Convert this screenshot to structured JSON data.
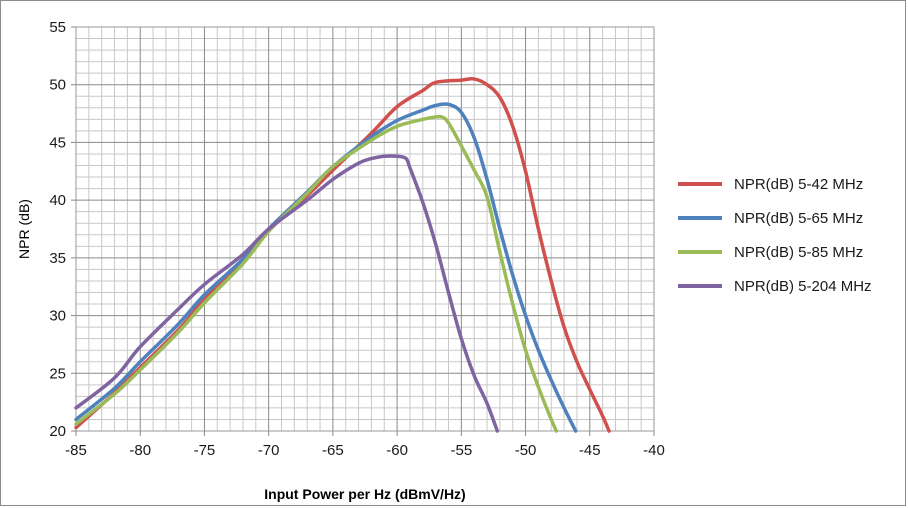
{
  "chart_data": {
    "type": "line",
    "title": "",
    "xlabel": "Input Power per Hz (dBmV/Hz)",
    "ylabel": "NPR (dB)",
    "xlim": [
      -85,
      -40
    ],
    "ylim": [
      20,
      55
    ],
    "x_major_ticks": [
      -85,
      -80,
      -75,
      -70,
      -65,
      -60,
      -55,
      -50,
      -45,
      -40
    ],
    "y_major_ticks": [
      20,
      25,
      30,
      35,
      40,
      45,
      50,
      55
    ],
    "x_tick_labels": [
      "-85",
      "-80",
      "-75",
      "-70",
      "-65",
      "-60",
      "-55",
      "-50",
      "-45",
      "-40"
    ],
    "y_tick_labels": [
      "20",
      "25",
      "30",
      "35",
      "40",
      "45",
      "50",
      "55"
    ],
    "grid": true,
    "minor_grid": true,
    "legend_position": "right",
    "series": [
      {
        "name": "NPR(dB) 5-42 MHz",
        "color": "#d0504d",
        "points": [
          [
            -85,
            20.3
          ],
          [
            -82,
            23.3
          ],
          [
            -80,
            25.5
          ],
          [
            -77,
            28.8
          ],
          [
            -75,
            31.4
          ],
          [
            -72,
            34.6
          ],
          [
            -70,
            37.4
          ],
          [
            -67,
            40.4
          ],
          [
            -65,
            42.6
          ],
          [
            -62,
            45.8
          ],
          [
            -60,
            48.1
          ],
          [
            -58,
            49.5
          ],
          [
            -57,
            50.2
          ],
          [
            -55,
            50.4
          ],
          [
            -54,
            50.5
          ],
          [
            -53,
            50.0
          ],
          [
            -52,
            48.9
          ],
          [
            -51,
            46.4
          ],
          [
            -50,
            42.5
          ],
          [
            -49,
            37.5
          ],
          [
            -48,
            33.0
          ],
          [
            -47,
            29.0
          ],
          [
            -46,
            26.0
          ],
          [
            -45,
            23.6
          ],
          [
            -44,
            21.3
          ],
          [
            -43.5,
            20.0
          ]
        ]
      },
      {
        "name": "NPR(dB) 5-65 MHz",
        "color": "#4f81bd",
        "points": [
          [
            -85,
            21.0
          ],
          [
            -82,
            23.7
          ],
          [
            -80,
            26.0
          ],
          [
            -77,
            29.3
          ],
          [
            -75,
            31.8
          ],
          [
            -72,
            34.9
          ],
          [
            -70,
            37.5
          ],
          [
            -67,
            40.7
          ],
          [
            -65,
            42.9
          ],
          [
            -62,
            45.5
          ],
          [
            -60,
            46.9
          ],
          [
            -58,
            47.8
          ],
          [
            -57,
            48.2
          ],
          [
            -56,
            48.3
          ],
          [
            -55,
            47.6
          ],
          [
            -54,
            45.4
          ],
          [
            -53,
            41.8
          ],
          [
            -52,
            37.5
          ],
          [
            -51,
            33.5
          ],
          [
            -50,
            30.0
          ],
          [
            -49,
            27.0
          ],
          [
            -48,
            24.4
          ],
          [
            -47,
            22.0
          ],
          [
            -46.1,
            20.0
          ]
        ]
      },
      {
        "name": "NPR(dB) 5-85 MHz",
        "color": "#9bbb59",
        "points": [
          [
            -85,
            20.6
          ],
          [
            -82,
            23.2
          ],
          [
            -80,
            25.3
          ],
          [
            -77,
            28.6
          ],
          [
            -75,
            31.1
          ],
          [
            -72,
            34.5
          ],
          [
            -70,
            37.3
          ],
          [
            -67,
            40.6
          ],
          [
            -65,
            42.9
          ],
          [
            -62,
            45.2
          ],
          [
            -60,
            46.4
          ],
          [
            -58,
            47.0
          ],
          [
            -57,
            47.2
          ],
          [
            -56.5,
            47.2
          ],
          [
            -56,
            46.7
          ],
          [
            -55,
            44.7
          ],
          [
            -54,
            42.6
          ],
          [
            -53,
            40.3
          ],
          [
            -52,
            35.5
          ],
          [
            -51,
            31.0
          ],
          [
            -50,
            27.0
          ],
          [
            -49,
            23.8
          ],
          [
            -48,
            21.0
          ],
          [
            -47.6,
            20.0
          ]
        ]
      },
      {
        "name": "NPR(dB) 5-204 MHz",
        "color": "#8064a2",
        "points": [
          [
            -85,
            22.0
          ],
          [
            -82,
            24.6
          ],
          [
            -80,
            27.3
          ],
          [
            -77,
            30.6
          ],
          [
            -75,
            32.7
          ],
          [
            -72,
            35.3
          ],
          [
            -70,
            37.5
          ],
          [
            -67,
            40.0
          ],
          [
            -65,
            41.8
          ],
          [
            -63,
            43.2
          ],
          [
            -62,
            43.6
          ],
          [
            -61,
            43.8
          ],
          [
            -60,
            43.8
          ],
          [
            -59.3,
            43.6
          ],
          [
            -59,
            42.8
          ],
          [
            -58,
            39.8
          ],
          [
            -57,
            36.2
          ],
          [
            -56,
            32.0
          ],
          [
            -55,
            28.0
          ],
          [
            -54,
            24.8
          ],
          [
            -53,
            22.4
          ],
          [
            -52.2,
            20.0
          ]
        ]
      }
    ]
  }
}
